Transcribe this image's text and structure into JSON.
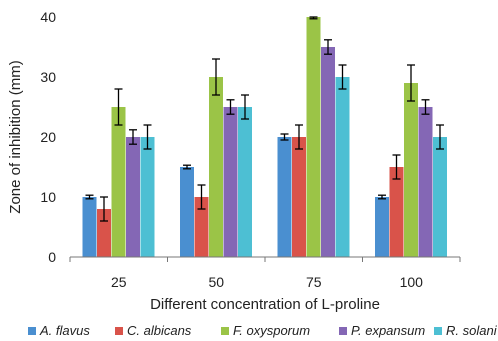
{
  "chart_data": {
    "type": "bar",
    "xlabel": "Different concentration of L-proline",
    "ylabel": "Zone of inhibition (mm)",
    "ylim": [
      0,
      40
    ],
    "yticks": [
      0,
      10,
      20,
      30,
      40
    ],
    "grid": false,
    "legend_position": "bottom",
    "categories": [
      "25",
      "50",
      "75",
      "100"
    ],
    "series": [
      {
        "name": "A. flavus",
        "color": "#4a8fd0",
        "values": [
          10,
          15,
          20,
          10
        ],
        "errors": [
          0.3,
          0.3,
          0.5,
          0.3
        ]
      },
      {
        "name": "C. albicans",
        "color": "#d9534a",
        "values": [
          8,
          10,
          20,
          15
        ],
        "errors": [
          2,
          2,
          2,
          2
        ]
      },
      {
        "name": "F. oxysporum",
        "color": "#9bc447",
        "values": [
          25,
          30,
          40,
          29
        ],
        "errors": [
          3,
          3,
          0.3,
          3
        ]
      },
      {
        "name": "P. expansum",
        "color": "#8467b5",
        "values": [
          20,
          25,
          35,
          25
        ],
        "errors": [
          1.2,
          1.2,
          1.2,
          1.2
        ]
      },
      {
        "name": "R. solani",
        "color": "#4dbfd3",
        "values": [
          20,
          25,
          30,
          20
        ],
        "errors": [
          2,
          2,
          2,
          2
        ]
      }
    ]
  }
}
